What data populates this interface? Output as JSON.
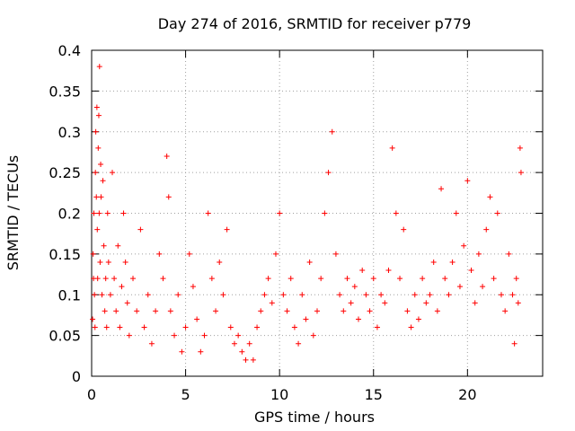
{
  "chart_data": {
    "type": "scatter",
    "title": "Day 274 of 2016, SRMTID for receiver p779",
    "xlabel": "GPS time / hours",
    "ylabel": "SRMTID / TECUs",
    "xlim": [
      0,
      24
    ],
    "ylim": [
      0,
      0.4
    ],
    "xticks": [
      0,
      5,
      10,
      15,
      20
    ],
    "xtick_labels": [
      "0",
      "5",
      "10",
      "15",
      "20"
    ],
    "yticks": [
      0,
      0.05,
      0.1,
      0.15,
      0.2,
      0.25,
      0.3,
      0.35,
      0.4
    ],
    "ytick_labels": [
      "0",
      "0.05",
      "0.1",
      "0.15",
      "0.2",
      "0.25",
      "0.3",
      "0.35",
      "0.4"
    ],
    "grid": true,
    "marker": "+",
    "color": "#ff0000",
    "series": [
      {
        "points": [
          [
            0.05,
            0.07
          ],
          [
            0.08,
            0.15
          ],
          [
            0.1,
            0.12
          ],
          [
            0.12,
            0.2
          ],
          [
            0.15,
            0.1
          ],
          [
            0.18,
            0.06
          ],
          [
            0.2,
            0.25
          ],
          [
            0.22,
            0.3
          ],
          [
            0.25,
            0.22
          ],
          [
            0.28,
            0.33
          ],
          [
            0.3,
            0.18
          ],
          [
            0.32,
            0.12
          ],
          [
            0.35,
            0.28
          ],
          [
            0.38,
            0.32
          ],
          [
            0.4,
            0.2
          ],
          [
            0.42,
            0.38
          ],
          [
            0.45,
            0.14
          ],
          [
            0.48,
            0.26
          ],
          [
            0.5,
            0.22
          ],
          [
            0.55,
            0.1
          ],
          [
            0.6,
            0.24
          ],
          [
            0.65,
            0.16
          ],
          [
            0.7,
            0.08
          ],
          [
            0.75,
            0.12
          ],
          [
            0.8,
            0.06
          ],
          [
            0.85,
            0.2
          ],
          [
            0.9,
            0.14
          ],
          [
            1.0,
            0.1
          ],
          [
            1.1,
            0.25
          ],
          [
            1.2,
            0.12
          ],
          [
            1.3,
            0.08
          ],
          [
            1.4,
            0.16
          ],
          [
            1.5,
            0.06
          ],
          [
            1.6,
            0.11
          ],
          [
            1.7,
            0.2
          ],
          [
            1.8,
            0.14
          ],
          [
            1.9,
            0.09
          ],
          [
            2.0,
            0.05
          ],
          [
            2.2,
            0.12
          ],
          [
            2.4,
            0.08
          ],
          [
            2.6,
            0.18
          ],
          [
            2.8,
            0.06
          ],
          [
            3.0,
            0.1
          ],
          [
            3.2,
            0.04
          ],
          [
            3.4,
            0.08
          ],
          [
            3.6,
            0.15
          ],
          [
            3.8,
            0.12
          ],
          [
            4.0,
            0.27
          ],
          [
            4.1,
            0.22
          ],
          [
            4.2,
            0.08
          ],
          [
            4.4,
            0.05
          ],
          [
            4.6,
            0.1
          ],
          [
            4.8,
            0.03
          ],
          [
            5.0,
            0.06
          ],
          [
            5.2,
            0.15
          ],
          [
            5.4,
            0.11
          ],
          [
            5.6,
            0.07
          ],
          [
            5.8,
            0.03
          ],
          [
            6.0,
            0.05
          ],
          [
            6.2,
            0.2
          ],
          [
            6.4,
            0.12
          ],
          [
            6.6,
            0.08
          ],
          [
            6.8,
            0.14
          ],
          [
            7.0,
            0.1
          ],
          [
            7.2,
            0.18
          ],
          [
            7.4,
            0.06
          ],
          [
            7.6,
            0.04
          ],
          [
            7.8,
            0.05
          ],
          [
            8.0,
            0.03
          ],
          [
            8.2,
            0.02
          ],
          [
            8.4,
            0.04
          ],
          [
            8.6,
            0.02
          ],
          [
            8.8,
            0.06
          ],
          [
            9.0,
            0.08
          ],
          [
            9.2,
            0.1
          ],
          [
            9.4,
            0.12
          ],
          [
            9.6,
            0.09
          ],
          [
            9.8,
            0.15
          ],
          [
            10.0,
            0.2
          ],
          [
            10.2,
            0.1
          ],
          [
            10.4,
            0.08
          ],
          [
            10.6,
            0.12
          ],
          [
            10.8,
            0.06
          ],
          [
            11.0,
            0.04
          ],
          [
            11.2,
            0.1
          ],
          [
            11.4,
            0.07
          ],
          [
            11.6,
            0.14
          ],
          [
            11.8,
            0.05
          ],
          [
            12.0,
            0.08
          ],
          [
            12.2,
            0.12
          ],
          [
            12.4,
            0.2
          ],
          [
            12.6,
            0.25
          ],
          [
            12.8,
            0.3
          ],
          [
            13.0,
            0.15
          ],
          [
            13.2,
            0.1
          ],
          [
            13.4,
            0.08
          ],
          [
            13.6,
            0.12
          ],
          [
            13.8,
            0.09
          ],
          [
            14.0,
            0.11
          ],
          [
            14.2,
            0.07
          ],
          [
            14.4,
            0.13
          ],
          [
            14.6,
            0.1
          ],
          [
            14.8,
            0.08
          ],
          [
            15.0,
            0.12
          ],
          [
            15.2,
            0.06
          ],
          [
            15.4,
            0.1
          ],
          [
            15.6,
            0.09
          ],
          [
            15.8,
            0.13
          ],
          [
            16.0,
            0.28
          ],
          [
            16.2,
            0.2
          ],
          [
            16.4,
            0.12
          ],
          [
            16.6,
            0.18
          ],
          [
            16.8,
            0.08
          ],
          [
            17.0,
            0.06
          ],
          [
            17.2,
            0.1
          ],
          [
            17.4,
            0.07
          ],
          [
            17.6,
            0.12
          ],
          [
            17.8,
            0.09
          ],
          [
            18.0,
            0.1
          ],
          [
            18.2,
            0.14
          ],
          [
            18.4,
            0.08
          ],
          [
            18.6,
            0.23
          ],
          [
            18.8,
            0.12
          ],
          [
            19.0,
            0.1
          ],
          [
            19.2,
            0.14
          ],
          [
            19.4,
            0.2
          ],
          [
            19.6,
            0.11
          ],
          [
            19.8,
            0.16
          ],
          [
            20.0,
            0.24
          ],
          [
            20.2,
            0.13
          ],
          [
            20.4,
            0.09
          ],
          [
            20.6,
            0.15
          ],
          [
            20.8,
            0.11
          ],
          [
            21.0,
            0.18
          ],
          [
            21.2,
            0.22
          ],
          [
            21.4,
            0.12
          ],
          [
            21.6,
            0.2
          ],
          [
            21.8,
            0.1
          ],
          [
            22.0,
            0.08
          ],
          [
            22.2,
            0.15
          ],
          [
            22.4,
            0.1
          ],
          [
            22.5,
            0.04
          ],
          [
            22.6,
            0.12
          ],
          [
            22.7,
            0.09
          ],
          [
            22.8,
            0.28
          ],
          [
            22.85,
            0.25
          ]
        ]
      }
    ]
  }
}
